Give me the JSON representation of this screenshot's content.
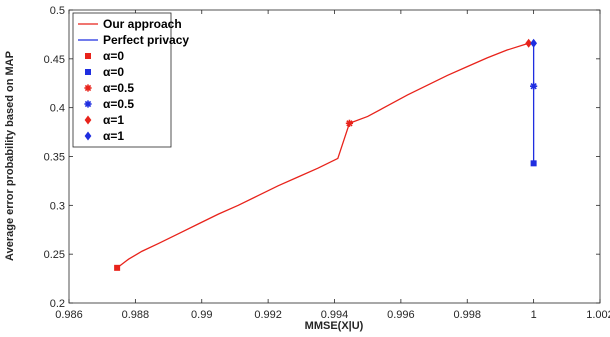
{
  "chart_data": {
    "type": "line",
    "title": "",
    "xlabel": "MMSE(X|U)",
    "ylabel": "Average error probability based on MAP",
    "xlim": [
      0.986,
      1.002
    ],
    "ylim": [
      0.2,
      0.5
    ],
    "xticks": [
      {
        "value": 0.986,
        "label": "0.986"
      },
      {
        "value": 0.988,
        "label": "0.988"
      },
      {
        "value": 0.99,
        "label": "0.99"
      },
      {
        "value": 0.992,
        "label": "0.992"
      },
      {
        "value": 0.994,
        "label": "0.994"
      },
      {
        "value": 0.996,
        "label": "0.996"
      },
      {
        "value": 0.998,
        "label": "0.998"
      },
      {
        "value": 1.0,
        "label": "1"
      },
      {
        "value": 1.002,
        "label": "1.002"
      }
    ],
    "yticks": [
      {
        "value": 0.2,
        "label": "0.2"
      },
      {
        "value": 0.25,
        "label": "0.25"
      },
      {
        "value": 0.3,
        "label": "0.3"
      },
      {
        "value": 0.35,
        "label": "0.35"
      },
      {
        "value": 0.4,
        "label": "0.4"
      },
      {
        "value": 0.45,
        "label": "0.45"
      },
      {
        "value": 0.5,
        "label": "0.5"
      }
    ],
    "grid": false,
    "legend_position": "top-left",
    "series": [
      {
        "name": "Our approach",
        "color": "#e8231b",
        "style": "line",
        "x": [
          0.98745,
          0.9878,
          0.9882,
          0.9887,
          0.9893,
          0.9899,
          0.9905,
          0.9911,
          0.9917,
          0.9923,
          0.9929,
          0.9935,
          0.9941,
          0.99445,
          0.995,
          0.9956,
          0.9962,
          0.9968,
          0.9974,
          0.998,
          0.9986,
          0.9992,
          0.99985
        ],
        "y": [
          0.236,
          0.245,
          0.253,
          0.261,
          0.271,
          0.281,
          0.291,
          0.3,
          0.31,
          0.32,
          0.329,
          0.338,
          0.348,
          0.384,
          0.391,
          0.402,
          0.413,
          0.423,
          0.433,
          0.442,
          0.451,
          0.459,
          0.466
        ]
      },
      {
        "name": "Perfect privacy",
        "color": "#1f2ee0",
        "style": "line",
        "x": [
          1.0,
          1.0,
          1.0
        ],
        "y": [
          0.343,
          0.422,
          0.466
        ]
      }
    ],
    "markers": [
      {
        "name": "α=0",
        "series_ref": "Our approach",
        "color": "#e8231b",
        "shape": "square",
        "x": 0.98745,
        "y": 0.236
      },
      {
        "name": "α=0",
        "series_ref": "Perfect privacy",
        "color": "#1f2ee0",
        "shape": "square",
        "x": 1.0,
        "y": 0.343
      },
      {
        "name": "α=0.5",
        "series_ref": "Our approach",
        "color": "#e8231b",
        "shape": "asterisk",
        "x": 0.99445,
        "y": 0.384
      },
      {
        "name": "α=0.5",
        "series_ref": "Perfect privacy",
        "color": "#1f2ee0",
        "shape": "asterisk",
        "x": 1.0,
        "y": 0.422
      },
      {
        "name": "α=1",
        "series_ref": "Our approach",
        "color": "#e8231b",
        "shape": "diamond",
        "x": 0.99985,
        "y": 0.466
      },
      {
        "name": "α=1",
        "series_ref": "Perfect privacy",
        "color": "#1f2ee0",
        "shape": "diamond",
        "x": 1.0,
        "y": 0.466
      }
    ],
    "legend": [
      {
        "label": "Our approach",
        "kind": "line",
        "color": "#e8231b"
      },
      {
        "label": "Perfect privacy",
        "kind": "line",
        "color": "#1f2ee0"
      },
      {
        "label": "α=0",
        "kind": "square",
        "color": "#e8231b"
      },
      {
        "label": "α=0",
        "kind": "square",
        "color": "#1f2ee0"
      },
      {
        "label": "α=0.5",
        "kind": "asterisk",
        "color": "#e8231b"
      },
      {
        "label": "α=0.5",
        "kind": "asterisk",
        "color": "#1f2ee0"
      },
      {
        "label": "α=1",
        "kind": "diamond",
        "color": "#e8231b"
      },
      {
        "label": "α=1",
        "kind": "diamond",
        "color": "#1f2ee0"
      }
    ]
  }
}
